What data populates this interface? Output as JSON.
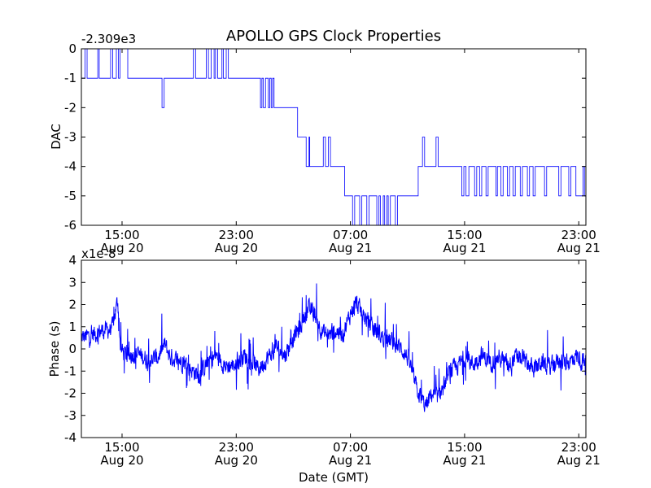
{
  "chart_data": {
    "title": "APOLLO GPS Clock Properties",
    "xlabel": "Date (GMT)",
    "series_color": "#0000ff",
    "x_ticks": [
      {
        "time": "15:00",
        "date": "Aug 20",
        "hour": 15
      },
      {
        "time": "23:00",
        "date": "Aug 20",
        "hour": 23
      },
      {
        "time": "07:00",
        "date": "Aug 21",
        "hour": 31
      },
      {
        "time": "15:00",
        "date": "Aug 21",
        "hour": 39
      },
      {
        "time": "23:00",
        "date": "Aug 21",
        "hour": 47
      }
    ],
    "xlim_hours": [
      12.15,
      47.5
    ],
    "panels": [
      {
        "type": "line",
        "name": "dac",
        "ylabel": "DAC",
        "offset_label": "-2.309e3",
        "ylim": [
          -6,
          0
        ],
        "yticks": [
          "0",
          "-1",
          "-2",
          "-3",
          "-4",
          "-5",
          "-6"
        ],
        "ytick_values": [
          0,
          -1,
          -2,
          -3,
          -4,
          -5,
          -6
        ],
        "step_points": [
          [
            12.15,
            -1
          ],
          [
            12.4,
            -1
          ],
          [
            12.4,
            0
          ],
          [
            12.55,
            0
          ],
          [
            12.55,
            -1
          ],
          [
            13.3,
            -1
          ],
          [
            13.3,
            0
          ],
          [
            13.4,
            0
          ],
          [
            13.4,
            -1
          ],
          [
            14.2,
            -1
          ],
          [
            14.2,
            0
          ],
          [
            14.35,
            0
          ],
          [
            14.35,
            -1
          ],
          [
            14.6,
            -1
          ],
          [
            14.6,
            0
          ],
          [
            14.75,
            0
          ],
          [
            14.75,
            -1
          ],
          [
            14.85,
            -1
          ],
          [
            14.85,
            0
          ],
          [
            15.4,
            0
          ],
          [
            15.4,
            -1
          ],
          [
            17.8,
            -1
          ],
          [
            17.8,
            -2
          ],
          [
            17.95,
            -2
          ],
          [
            17.95,
            -1
          ],
          [
            20.0,
            -1
          ],
          [
            20.0,
            0
          ],
          [
            20.15,
            0
          ],
          [
            20.15,
            -1
          ],
          [
            20.9,
            -1
          ],
          [
            20.9,
            0
          ],
          [
            21.05,
            0
          ],
          [
            21.05,
            -1
          ],
          [
            21.25,
            -1
          ],
          [
            21.25,
            0
          ],
          [
            21.45,
            0
          ],
          [
            21.45,
            -1
          ],
          [
            21.55,
            -1
          ],
          [
            21.55,
            0
          ],
          [
            21.7,
            0
          ],
          [
            21.7,
            -1
          ],
          [
            22.0,
            -1
          ],
          [
            22.0,
            0
          ],
          [
            22.1,
            0
          ],
          [
            22.1,
            -1
          ],
          [
            22.3,
            -1
          ],
          [
            22.3,
            0
          ],
          [
            22.45,
            0
          ],
          [
            22.45,
            -1
          ],
          [
            24.7,
            -1
          ],
          [
            24.7,
            -2
          ],
          [
            24.8,
            -2
          ],
          [
            24.8,
            -1
          ],
          [
            24.9,
            -1
          ],
          [
            24.9,
            -2
          ],
          [
            25.05,
            -2
          ],
          [
            25.05,
            -1
          ],
          [
            25.25,
            -1
          ],
          [
            25.25,
            -2
          ],
          [
            25.35,
            -2
          ],
          [
            25.35,
            -1
          ],
          [
            25.45,
            -1
          ],
          [
            25.45,
            -2
          ],
          [
            25.55,
            -2
          ],
          [
            25.55,
            -1
          ],
          [
            25.65,
            -1
          ],
          [
            25.65,
            -2
          ],
          [
            27.3,
            -2
          ],
          [
            27.3,
            -3
          ],
          [
            27.9,
            -3
          ],
          [
            27.9,
            -4
          ],
          [
            28.1,
            -4
          ],
          [
            28.1,
            -3
          ],
          [
            28.15,
            -3
          ],
          [
            28.15,
            -4
          ],
          [
            29.1,
            -4
          ],
          [
            29.1,
            -3
          ],
          [
            29.25,
            -3
          ],
          [
            29.25,
            -4
          ],
          [
            29.45,
            -4
          ],
          [
            29.45,
            -3
          ],
          [
            29.6,
            -3
          ],
          [
            29.6,
            -4
          ],
          [
            30.6,
            -4
          ],
          [
            30.6,
            -5
          ],
          [
            31.15,
            -5
          ],
          [
            31.15,
            -6
          ],
          [
            31.3,
            -6
          ],
          [
            31.3,
            -5
          ],
          [
            31.65,
            -5
          ],
          [
            31.65,
            -6
          ],
          [
            31.8,
            -6
          ],
          [
            31.8,
            -5
          ],
          [
            32.15,
            -5
          ],
          [
            32.15,
            -6
          ],
          [
            32.3,
            -6
          ],
          [
            32.3,
            -5
          ],
          [
            32.85,
            -5
          ],
          [
            32.85,
            -6
          ],
          [
            33.0,
            -6
          ],
          [
            33.0,
            -5
          ],
          [
            33.1,
            -5
          ],
          [
            33.1,
            -6
          ],
          [
            33.3,
            -6
          ],
          [
            33.3,
            -5
          ],
          [
            33.4,
            -5
          ],
          [
            33.4,
            -6
          ],
          [
            33.55,
            -6
          ],
          [
            33.55,
            -5
          ],
          [
            33.65,
            -5
          ],
          [
            33.65,
            -6
          ],
          [
            33.8,
            -6
          ],
          [
            33.8,
            -5
          ],
          [
            34.15,
            -5
          ],
          [
            34.15,
            -6
          ],
          [
            34.3,
            -6
          ],
          [
            34.3,
            -5
          ],
          [
            35.75,
            -5
          ],
          [
            35.75,
            -4
          ],
          [
            36.05,
            -4
          ],
          [
            36.05,
            -3
          ],
          [
            36.2,
            -3
          ],
          [
            36.2,
            -4
          ],
          [
            37.0,
            -4
          ],
          [
            37.0,
            -3
          ],
          [
            37.15,
            -3
          ],
          [
            37.15,
            -4
          ],
          [
            38.8,
            -4
          ],
          [
            38.8,
            -5
          ],
          [
            38.95,
            -5
          ],
          [
            38.95,
            -4
          ],
          [
            39.1,
            -4
          ],
          [
            39.1,
            -5
          ],
          [
            39.3,
            -5
          ],
          [
            39.3,
            -4
          ],
          [
            39.7,
            -4
          ],
          [
            39.7,
            -5
          ],
          [
            39.85,
            -5
          ],
          [
            39.85,
            -4
          ],
          [
            40.05,
            -4
          ],
          [
            40.05,
            -5
          ],
          [
            40.2,
            -5
          ],
          [
            40.2,
            -4
          ],
          [
            40.5,
            -4
          ],
          [
            40.5,
            -5
          ],
          [
            40.65,
            -5
          ],
          [
            40.65,
            -4
          ],
          [
            41.2,
            -4
          ],
          [
            41.2,
            -5
          ],
          [
            41.3,
            -5
          ],
          [
            41.3,
            -4
          ],
          [
            41.55,
            -4
          ],
          [
            41.55,
            -5
          ],
          [
            41.7,
            -5
          ],
          [
            41.7,
            -4
          ],
          [
            42.0,
            -4
          ],
          [
            42.0,
            -5
          ],
          [
            42.15,
            -5
          ],
          [
            42.15,
            -4
          ],
          [
            42.4,
            -4
          ],
          [
            42.4,
            -5
          ],
          [
            42.55,
            -5
          ],
          [
            42.55,
            -4
          ],
          [
            42.9,
            -4
          ],
          [
            42.9,
            -5
          ],
          [
            43.05,
            -5
          ],
          [
            43.05,
            -4
          ],
          [
            43.4,
            -4
          ],
          [
            43.4,
            -5
          ],
          [
            43.55,
            -5
          ],
          [
            43.55,
            -4
          ],
          [
            43.8,
            -4
          ],
          [
            43.8,
            -5
          ],
          [
            43.95,
            -5
          ],
          [
            43.95,
            -4
          ],
          [
            44.6,
            -4
          ],
          [
            44.6,
            -5
          ],
          [
            44.75,
            -5
          ],
          [
            44.75,
            -4
          ],
          [
            45.6,
            -4
          ],
          [
            45.6,
            -5
          ],
          [
            45.75,
            -5
          ],
          [
            45.75,
            -4
          ],
          [
            46.3,
            -4
          ],
          [
            46.3,
            -5
          ],
          [
            46.45,
            -5
          ],
          [
            46.45,
            -4
          ],
          [
            46.8,
            -4
          ],
          [
            46.8,
            -5
          ],
          [
            47.3,
            -5
          ],
          [
            47.3,
            -4
          ],
          [
            47.4,
            -4
          ],
          [
            47.4,
            -5
          ],
          [
            47.5,
            -5
          ]
        ]
      },
      {
        "type": "line",
        "name": "phase",
        "ylabel": "Phase (s)",
        "offset_label": "x1e-8",
        "ylim": [
          -4,
          4
        ],
        "yticks": [
          "4",
          "3",
          "2",
          "1",
          "0",
          "-1",
          "-2",
          "-3",
          "-4"
        ],
        "ytick_values": [
          4,
          3,
          2,
          1,
          0,
          -1,
          -2,
          -3,
          -4
        ],
        "anchor_points": [
          [
            12.15,
            0.5
          ],
          [
            12.8,
            0.6
          ],
          [
            13.5,
            0.8
          ],
          [
            14.3,
            0.9
          ],
          [
            14.7,
            2.2
          ],
          [
            14.9,
            0.0
          ],
          [
            15.3,
            -0.3
          ],
          [
            16.0,
            -0.2
          ],
          [
            16.8,
            -0.5
          ],
          [
            17.5,
            -0.4
          ],
          [
            18.0,
            0.2
          ],
          [
            18.4,
            -0.4
          ],
          [
            19.0,
            -0.5
          ],
          [
            19.5,
            -0.7
          ],
          [
            20.0,
            -1.0
          ],
          [
            20.4,
            -1.2
          ],
          [
            21.0,
            -0.6
          ],
          [
            21.6,
            -0.3
          ],
          [
            22.3,
            -0.8
          ],
          [
            23.0,
            -0.7
          ],
          [
            23.6,
            -0.3
          ],
          [
            24.1,
            -0.6
          ],
          [
            24.6,
            -0.9
          ],
          [
            25.2,
            -0.4
          ],
          [
            25.8,
            0.1
          ],
          [
            26.4,
            -0.3
          ],
          [
            27.0,
            0.5
          ],
          [
            27.5,
            1.0
          ],
          [
            28.0,
            1.8
          ],
          [
            28.5,
            1.6
          ],
          [
            29.0,
            0.8
          ],
          [
            29.5,
            0.6
          ],
          [
            30.0,
            0.8
          ],
          [
            30.5,
            0.7
          ],
          [
            31.0,
            1.6
          ],
          [
            31.4,
            2.1
          ],
          [
            31.8,
            1.6
          ],
          [
            32.5,
            1.0
          ],
          [
            33.3,
            0.5
          ],
          [
            34.0,
            0.3
          ],
          [
            34.6,
            0.0
          ],
          [
            35.1,
            -0.5
          ],
          [
            35.5,
            -1.5
          ],
          [
            35.9,
            -2.2
          ],
          [
            36.3,
            -2.6
          ],
          [
            36.7,
            -2.0
          ],
          [
            37.1,
            -2.2
          ],
          [
            37.6,
            -1.6
          ],
          [
            38.0,
            -1.0
          ],
          [
            38.5,
            -0.8
          ],
          [
            39.0,
            -0.4
          ],
          [
            39.6,
            -0.7
          ],
          [
            40.2,
            -0.3
          ],
          [
            40.8,
            -0.6
          ],
          [
            41.4,
            -0.4
          ],
          [
            42.0,
            -0.7
          ],
          [
            42.6,
            -0.4
          ],
          [
            43.2,
            -0.5
          ],
          [
            43.8,
            -0.9
          ],
          [
            44.4,
            -0.6
          ],
          [
            45.0,
            -0.8
          ],
          [
            45.6,
            -0.5
          ],
          [
            46.2,
            -0.7
          ],
          [
            46.8,
            -0.3
          ],
          [
            47.5,
            -0.7
          ]
        ],
        "noise_amplitude": 0.35,
        "spike_count": 140
      }
    ]
  }
}
